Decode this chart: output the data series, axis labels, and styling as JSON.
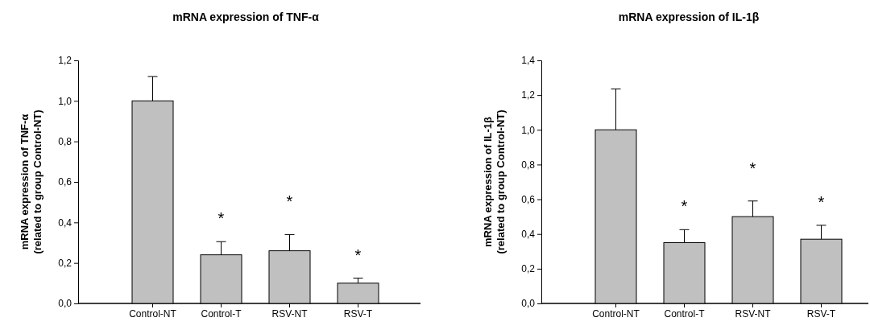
{
  "chart_data": [
    {
      "type": "bar",
      "title": "mRNA expression of TNF-α",
      "ylabel": "mRNA expression of TNF-α\n(related to group Control-NT)",
      "categories": [
        "Control-NT",
        "Control-T",
        "RSV-NT",
        "RSV-T"
      ],
      "values": [
        1.0,
        0.24,
        0.26,
        0.1
      ],
      "color": "#c0c0c0",
      "errors": [
        [
          1.0,
          1.12
        ],
        [
          0.24,
          0.305
        ],
        [
          0.26,
          0.34
        ],
        [
          0.1,
          0.125
        ]
      ],
      "ylim": [
        0,
        1.2
      ],
      "yticks": [
        {
          "value": 0,
          "label": "0,0"
        },
        {
          "value": 0.2,
          "label": "0,2"
        },
        {
          "value": 0.4,
          "label": "0,4"
        },
        {
          "value": 0.6,
          "label": "0,6"
        },
        {
          "value": 0.8,
          "label": "0,8"
        },
        {
          "value": 1.0,
          "label": "1,0"
        },
        {
          "value": 1.2,
          "label": "1,2"
        }
      ],
      "grid": false,
      "annotations": [
        "*",
        "*",
        "*"
      ]
    },
    {
      "type": "bar",
      "title": "mRNA expression of IL-1β",
      "ylabel": "mRNA expression of IL-1β\n(related to group Control-NT)",
      "categories": [
        "Control-NT",
        "Control-T",
        "RSV-NT",
        "RSV-T"
      ],
      "values": [
        1.0,
        0.35,
        0.5,
        0.37
      ],
      "color": "#c0c0c0",
      "errors": [
        [
          1.0,
          1.235
        ],
        [
          0.35,
          0.425
        ],
        [
          0.5,
          0.59
        ],
        [
          0.37,
          0.45
        ]
      ],
      "ylim": [
        0,
        1.4
      ],
      "yticks": [
        {
          "value": 0,
          "label": "0,0"
        },
        {
          "value": 0.2,
          "label": "0,2"
        },
        {
          "value": 0.4,
          "label": "0,4"
        },
        {
          "value": 0.6,
          "label": "0,6"
        },
        {
          "value": 0.8,
          "label": "0,8"
        },
        {
          "value": 1.0,
          "label": "1,0"
        },
        {
          "value": 1.2,
          "label": "1,2"
        },
        {
          "value": 1.4,
          "label": "1,4"
        }
      ],
      "grid": false,
      "annotations": [
        "*",
        "*",
        "*"
      ]
    }
  ]
}
